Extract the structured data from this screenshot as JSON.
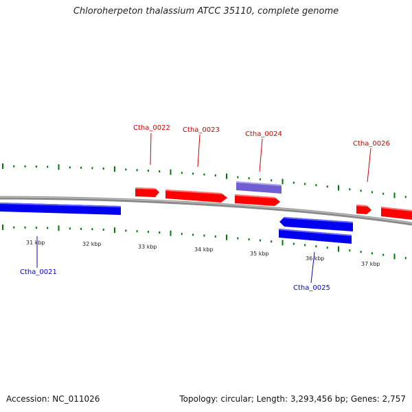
{
  "title": "Chloroherpeton thalassium ATCC 35110, complete genome",
  "footer": {
    "accession": "Accession: NC_011026",
    "summary": "Topology: circular; Length: 3,293,456 bp; Genes: 2,757"
  },
  "colors": {
    "forward_gene": "#ff0000",
    "reverse_gene": "#0000ff",
    "highlight_gene": "#8877dd",
    "backbone": "#888888",
    "ticks": "#007700",
    "forward_label": "#cc0000",
    "reverse_label": "#0000cc"
  },
  "scale": {
    "unit": "kbp",
    "labels": [
      "31 kbp",
      "32 kbp",
      "33 kbp",
      "34 kbp",
      "35 kbp",
      "36 kbp",
      "37 kbp"
    ]
  },
  "gene_labels": [
    {
      "text": "Ctha_0021",
      "strand": "reverse"
    },
    {
      "text": "Ctha_0022",
      "strand": "forward"
    },
    {
      "text": "Ctha_0023",
      "strand": "forward"
    },
    {
      "text": "Ctha_0024",
      "strand": "forward"
    },
    {
      "text": "Ctha_0025",
      "strand": "reverse"
    },
    {
      "text": "Ctha_0026",
      "strand": "forward"
    }
  ]
}
